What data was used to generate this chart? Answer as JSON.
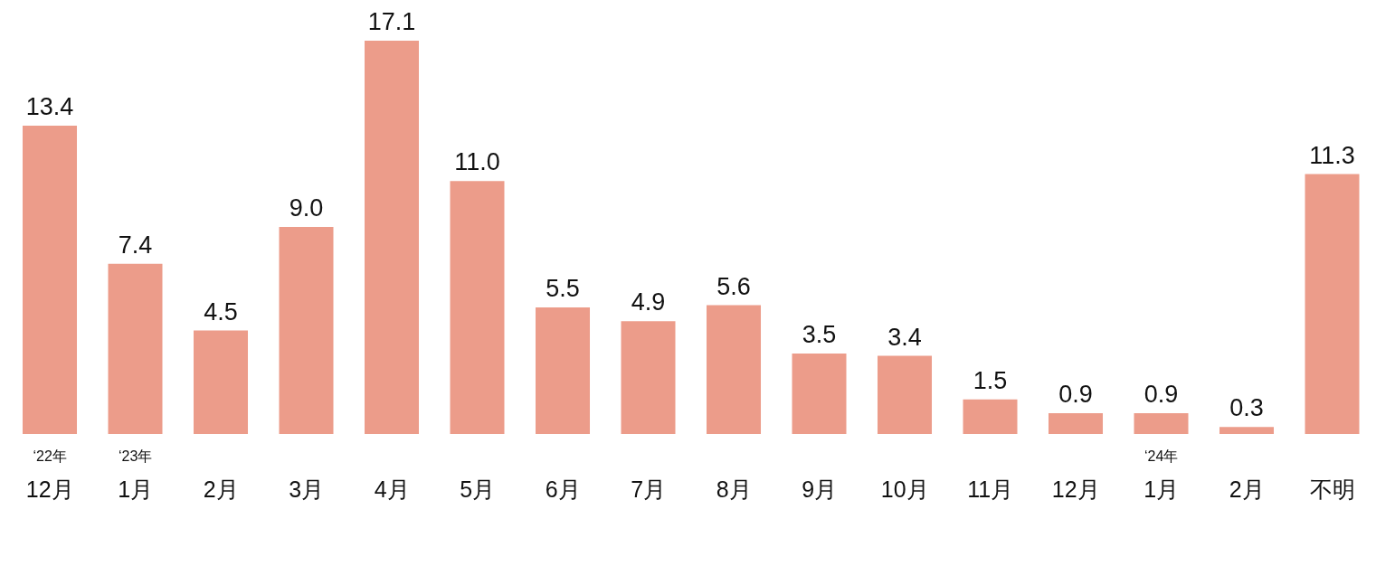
{
  "chart_data": {
    "type": "bar",
    "categories": [
      "‘22年\n12月",
      "‘23年\n1月",
      "2月",
      "3月",
      "4月",
      "5月",
      "6月",
      "7月",
      "8月",
      "9月",
      "10月",
      "11月",
      "12月",
      "‘24年\n1月",
      "2月",
      "不明"
    ],
    "values": [
      13.4,
      7.4,
      4.5,
      9.0,
      17.1,
      11.0,
      5.5,
      4.9,
      5.6,
      3.5,
      3.4,
      1.5,
      0.9,
      0.9,
      0.3,
      11.3
    ],
    "value_labels": [
      "13.4",
      "7.4",
      "4.5",
      "9.0",
      "17.1",
      "11.0",
      "5.5",
      "4.9",
      "5.6",
      "3.5",
      "3.4",
      "1.5",
      "0.9",
      "0.9",
      "0.3",
      "11.3"
    ],
    "color": "#ec9c8a"
  }
}
